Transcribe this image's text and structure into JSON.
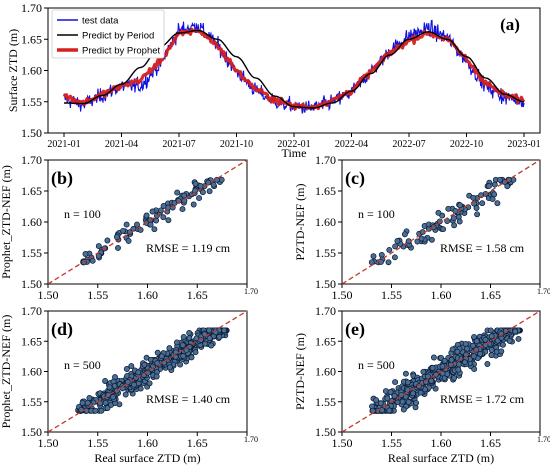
{
  "colors": {
    "test": "#1010e0",
    "period": "#000000",
    "prophet": "#d42020",
    "point_fill": "#4a6e94",
    "point_edge": "#0a1a33",
    "diag": "#c0392b"
  },
  "chart_data": [
    {
      "panel": "(a)",
      "type": "line",
      "xlabel": "Time",
      "ylabel": "Surface ZTD (m)",
      "ylim": [
        1.5,
        1.7
      ],
      "yticks": [
        "1.50",
        "1.55",
        "1.60",
        "1.65",
        "1.70"
      ],
      "xticks": [
        "2021-01",
        "2021-04",
        "2021-07",
        "2021-10",
        "2022-01",
        "2022-04",
        "2022-07",
        "2022-10",
        "2023-01"
      ],
      "legend_position": "top-left",
      "legend": [
        "test data",
        "Predict by Period",
        "Predict by Prophet"
      ],
      "x_months": [
        0,
        1,
        2,
        3,
        4,
        5,
        6,
        7,
        8,
        9,
        10,
        11,
        12,
        13,
        14,
        15,
        16,
        17,
        18,
        19,
        20,
        21,
        22,
        23,
        24
      ],
      "series": [
        {
          "name": "test data",
          "values": [
            1.555,
            1.545,
            1.56,
            1.575,
            1.575,
            1.61,
            1.665,
            1.672,
            1.64,
            1.598,
            1.568,
            1.55,
            1.542,
            1.54,
            1.55,
            1.565,
            1.598,
            1.632,
            1.655,
            1.668,
            1.652,
            1.615,
            1.575,
            1.557,
            1.552
          ]
        },
        {
          "name": "Predict by Period",
          "values": [
            1.548,
            1.547,
            1.56,
            1.578,
            1.605,
            1.638,
            1.66,
            1.664,
            1.65,
            1.622,
            1.588,
            1.559,
            1.542,
            1.54,
            1.548,
            1.567,
            1.595,
            1.625,
            1.65,
            1.662,
            1.65,
            1.622,
            1.588,
            1.562,
            1.55
          ]
        },
        {
          "name": "Predict by Prophet",
          "values": [
            1.56,
            1.548,
            1.562,
            1.575,
            1.585,
            1.615,
            1.658,
            1.665,
            1.64,
            1.6,
            1.57,
            1.553,
            1.543,
            1.542,
            1.552,
            1.568,
            1.598,
            1.628,
            1.648,
            1.66,
            1.65,
            1.618,
            1.58,
            1.56,
            1.552
          ]
        }
      ]
    },
    {
      "panel": "(b)",
      "type": "scatter",
      "xlabel": "",
      "ylabel": "Prophet_ZTD-NEF (m)",
      "xlim": [
        1.5,
        1.7
      ],
      "ylim": [
        1.5,
        1.7
      ],
      "xticks": [
        "1.50",
        "1.55",
        "1.60",
        "1.65",
        "1.70"
      ],
      "yticks": [
        "1.50",
        "1.55",
        "1.60",
        "1.65",
        "1.70"
      ],
      "n_label": "n = 100",
      "rmse_label": "RMSE = 1.19 cm",
      "n": 100,
      "rmse_cm": 1.19,
      "x_range": [
        1.53,
        1.675
      ]
    },
    {
      "panel": "(c)",
      "type": "scatter",
      "xlabel": "",
      "ylabel": "PZTD-NEF (m)",
      "xlim": [
        1.5,
        1.7
      ],
      "ylim": [
        1.5,
        1.7
      ],
      "xticks": [
        "1.50",
        "1.55",
        "1.60",
        "1.65",
        "1.70"
      ],
      "yticks": [
        "1.50",
        "1.55",
        "1.60",
        "1.65",
        "1.70"
      ],
      "n_label": "n = 100",
      "rmse_label": "RMSE = 1.58 cm",
      "n": 100,
      "rmse_cm": 1.58,
      "x_range": [
        1.53,
        1.675
      ]
    },
    {
      "panel": "(d)",
      "type": "scatter",
      "xlabel": "Real surface ZTD (m)",
      "ylabel": "Prophet_ZTD-NEF (m)",
      "xlim": [
        1.5,
        1.7
      ],
      "ylim": [
        1.5,
        1.7
      ],
      "xticks": [
        "1.50",
        "1.55",
        "1.60",
        "1.65",
        "1.70"
      ],
      "yticks": [
        "1.50",
        "1.55",
        "1.60",
        "1.65",
        "1.70"
      ],
      "n_label": "n = 500",
      "rmse_label": "RMSE = 1.40 cm",
      "n": 500,
      "rmse_cm": 1.4,
      "x_range": [
        1.53,
        1.68
      ]
    },
    {
      "panel": "(e)",
      "type": "scatter",
      "xlabel": "Real surface ZTD (m)",
      "ylabel": "PZTD-NEF (m)",
      "xlim": [
        1.5,
        1.7
      ],
      "ylim": [
        1.5,
        1.7
      ],
      "xticks": [
        "1.50",
        "1.55",
        "1.60",
        "1.65",
        "1.70"
      ],
      "yticks": [
        "1.50",
        "1.55",
        "1.60",
        "1.65",
        "1.70"
      ],
      "n_label": "n = 500",
      "rmse_label": "RMSE = 1.72 cm",
      "n": 500,
      "rmse_cm": 1.72,
      "x_range": [
        1.53,
        1.68
      ]
    }
  ]
}
